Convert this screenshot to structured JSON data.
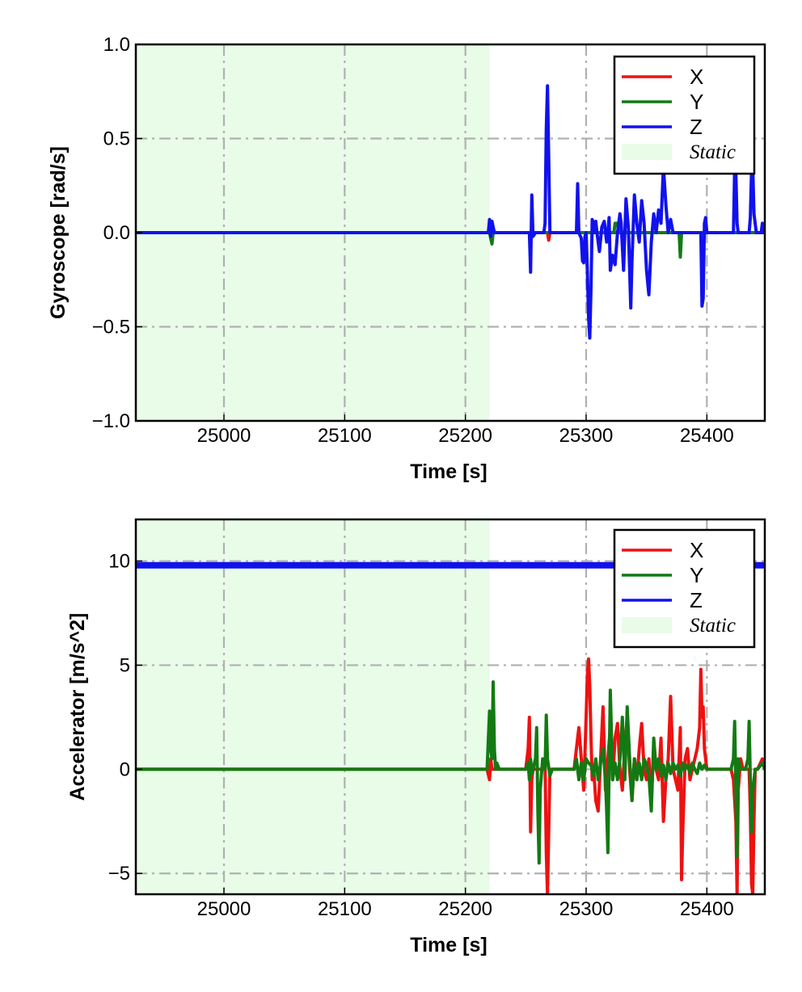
{
  "chart_data": [
    {
      "type": "line",
      "xlabel": "Time [s]",
      "ylabel": "Gyroscope [rad/s]",
      "xlim": [
        24927,
        25448
      ],
      "ylim": [
        -1.0,
        1.0
      ],
      "xticks": [
        25000,
        25100,
        25200,
        25300,
        25400
      ],
      "xtick_labels": [
        "25000",
        "25100",
        "25200",
        "25300",
        "25400"
      ],
      "yticks": [
        -1.0,
        -0.5,
        0.0,
        0.5,
        1.0
      ],
      "ytick_labels": [
        "−1.0",
        "−0.5",
        "0.0",
        "0.5",
        "1.0"
      ],
      "grid": true,
      "legend": "top-right",
      "static_region": {
        "label": "Static",
        "x": [
          24927,
          25220
        ],
        "color": "#e8fce8"
      },
      "series": [
        {
          "name": "X",
          "color": "#ee1111",
          "x": [
            24927,
            25220,
            25221,
            25222,
            25223,
            25253,
            25254,
            25255,
            25256,
            25268,
            25269,
            25270,
            25300,
            25448
          ],
          "y": [
            0.0,
            0.0,
            0.04,
            -0.03,
            0.0,
            0.0,
            -0.02,
            0.02,
            0.0,
            0.0,
            -0.04,
            0.0,
            0.0,
            0.0
          ]
        },
        {
          "name": "Y",
          "color": "#137a13",
          "x": [
            24927,
            25220,
            25222,
            25223,
            25225,
            25323,
            25324,
            25326,
            25327,
            25377,
            25378,
            25379,
            25448
          ],
          "y": [
            0.0,
            0.0,
            -0.06,
            0.0,
            0.0,
            0.0,
            0.05,
            0.05,
            0.0,
            0.0,
            -0.13,
            0.0,
            0.0
          ]
        },
        {
          "name": "Z",
          "color": "#1111ee",
          "x": [
            24927,
            25219,
            25220,
            25221,
            25222,
            25224,
            25253,
            25254,
            25255,
            25256,
            25258,
            25265,
            25266,
            25267,
            25268,
            25269,
            25270,
            25272,
            25292,
            25293,
            25294,
            25296,
            25297,
            25298,
            25299,
            25300,
            25301,
            25302,
            25303,
            25304,
            25305,
            25306,
            25307,
            25308,
            25309,
            25311,
            25313,
            25315,
            25317,
            25318,
            25319,
            25320,
            25322,
            25324,
            25326,
            25328,
            25329,
            25331,
            25333,
            25335,
            25337,
            25338,
            25340,
            25342,
            25344,
            25346,
            25348,
            25350,
            25352,
            25354,
            25356,
            25358,
            25360,
            25362,
            25364,
            25366,
            25368,
            25370,
            25372,
            25374,
            25376,
            25378,
            25380,
            25382,
            25384,
            25386,
            25388,
            25395,
            25396,
            25397,
            25398,
            25399,
            25400,
            25402,
            25410,
            25422,
            25423,
            25424,
            25425,
            25426,
            25428,
            25435,
            25436,
            25437,
            25438,
            25439,
            25441,
            25445,
            25446,
            25447,
            25448
          ],
          "y": [
            0.0,
            0.0,
            0.07,
            -0.02,
            0.06,
            0.0,
            0.0,
            -0.21,
            0.2,
            -0.02,
            0.0,
            0.0,
            0.05,
            0.55,
            0.78,
            0.4,
            0.0,
            0.0,
            0.0,
            0.26,
            0.0,
            -0.03,
            -0.15,
            -0.16,
            -0.02,
            0.0,
            -0.2,
            -0.45,
            -0.56,
            -0.3,
            0.07,
            0.05,
            0.0,
            0.06,
            0.0,
            -0.1,
            0.03,
            0.06,
            -0.05,
            0.0,
            0.08,
            -0.2,
            -0.12,
            -0.17,
            0.0,
            0.1,
            0.05,
            -0.2,
            0.18,
            0.02,
            -0.4,
            -0.15,
            0.2,
            0.05,
            -0.05,
            0.17,
            0.05,
            -0.2,
            -0.33,
            -0.05,
            0.1,
            0.0,
            0.12,
            0.05,
            0.35,
            0.15,
            0.0,
            0.07,
            0.0,
            0.0,
            0.0,
            0.0,
            0.0,
            0.0,
            0.0,
            0.0,
            0.0,
            0.0,
            -0.39,
            -0.35,
            0.05,
            0.08,
            0.0,
            0.0,
            0.0,
            0.0,
            0.34,
            0.32,
            0.05,
            0.0,
            0.0,
            0.0,
            0.08,
            0.33,
            0.35,
            0.1,
            0.0,
            0.0,
            0.05,
            0.0,
            0.0
          ]
        }
      ]
    },
    {
      "type": "line",
      "xlabel": "Time [s]",
      "ylabel": "Accelerator [m/s^2]",
      "xlim": [
        24927,
        25448
      ],
      "ylim": [
        -6,
        12
      ],
      "xticks": [
        25000,
        25100,
        25200,
        25300,
        25400
      ],
      "xtick_labels": [
        "25000",
        "25100",
        "25200",
        "25300",
        "25400"
      ],
      "yticks": [
        -5,
        0,
        5,
        10
      ],
      "ytick_labels": [
        "−5",
        "0",
        "5",
        "10"
      ],
      "grid": true,
      "legend": "top-right",
      "static_region": {
        "label": "Static",
        "x": [
          24927,
          25220
        ],
        "color": "#e8fce8"
      },
      "series": [
        {
          "name": "X",
          "color": "#ee1111",
          "x": [
            24927,
            25218,
            25220,
            25221,
            25222,
            25224,
            25250,
            25252,
            25253,
            25254,
            25255,
            25256,
            25258,
            25265,
            25266,
            25267,
            25268,
            25269,
            25270,
            25272,
            25290,
            25292,
            25294,
            25296,
            25298,
            25300,
            25301,
            25302,
            25303,
            25304,
            25305,
            25306,
            25308,
            25310,
            25312,
            25314,
            25316,
            25318,
            25320,
            25322,
            25324,
            25326,
            25328,
            25330,
            25332,
            25334,
            25336,
            25338,
            25340,
            25342,
            25344,
            25346,
            25348,
            25350,
            25352,
            25354,
            25356,
            25358,
            25360,
            25362,
            25364,
            25366,
            25368,
            25370,
            25372,
            25374,
            25376,
            25378,
            25379,
            25380,
            25382,
            25384,
            25386,
            25388,
            25390,
            25392,
            25394,
            25395,
            25396,
            25397,
            25398,
            25400,
            25402,
            25420,
            25422,
            25424,
            25425,
            25426,
            25428,
            25430,
            25435,
            25436,
            25437,
            25438,
            25439,
            25440,
            25442,
            25446,
            25448
          ],
          "y": [
            0.0,
            0.0,
            -0.5,
            0.5,
            0.0,
            0.0,
            0.0,
            1.0,
            2.5,
            -3.0,
            -0.5,
            0.0,
            0.0,
            0.0,
            0.3,
            -4.0,
            -6.0,
            -3.0,
            0.0,
            0.0,
            0.0,
            1.0,
            2.0,
            0.5,
            -1.0,
            2.5,
            4.5,
            5.3,
            4.0,
            1.5,
            -0.5,
            0.2,
            -1.5,
            -2.0,
            0.5,
            3.0,
            -1.0,
            0.5,
            2.0,
            -0.5,
            1.5,
            2.2,
            0.0,
            -1.0,
            1.0,
            2.5,
            0.0,
            -1.5,
            0.5,
            -0.5,
            1.0,
            2.2,
            0.0,
            -0.5,
            0.5,
            -1.5,
            1.0,
            0.0,
            -0.5,
            1.5,
            -2.5,
            -0.5,
            0.5,
            3.5,
            0.0,
            -0.5,
            -1.0,
            2.0,
            -5.3,
            -3.0,
            0.5,
            1.0,
            -0.5,
            0.0,
            0.5,
            1.0,
            2.0,
            4.8,
            2.5,
            3.0,
            1.0,
            0.0,
            0.0,
            0.0,
            -0.5,
            -2.5,
            -6.0,
            -1.0,
            0.5,
            0.0,
            0.0,
            -2.0,
            -5.5,
            -6.0,
            -2.5,
            0.0,
            0.0,
            0.5,
            0.0
          ]
        },
        {
          "name": "Y",
          "color": "#137a13",
          "x": [
            24927,
            25218,
            25220,
            25221,
            25222,
            25223,
            25224,
            25225,
            25226,
            25228,
            25250,
            25252,
            25253,
            25254,
            25255,
            25256,
            25258,
            25259,
            25260,
            25261,
            25262,
            25264,
            25266,
            25267,
            25268,
            25270,
            25272,
            25290,
            25292,
            25294,
            25296,
            25298,
            25300,
            25302,
            25304,
            25306,
            25308,
            25310,
            25312,
            25314,
            25316,
            25317,
            25318,
            25319,
            25320,
            25322,
            25324,
            25326,
            25328,
            25330,
            25332,
            25334,
            25336,
            25338,
            25340,
            25342,
            25344,
            25346,
            25348,
            25350,
            25352,
            25354,
            25356,
            25358,
            25360,
            25362,
            25364,
            25366,
            25368,
            25370,
            25372,
            25374,
            25376,
            25378,
            25380,
            25382,
            25384,
            25386,
            25388,
            25390,
            25392,
            25394,
            25396,
            25398,
            25400,
            25420,
            25422,
            25423,
            25424,
            25425,
            25426,
            25428,
            25430,
            25432,
            25434,
            25435,
            25436,
            25437,
            25438,
            25440,
            25442,
            25446,
            25448
          ],
          "y": [
            0.0,
            0.0,
            2.8,
            1.0,
            0.5,
            4.2,
            1.0,
            0.0,
            0.3,
            0.0,
            0.0,
            0.3,
            -0.5,
            0.5,
            -0.2,
            0.0,
            0.5,
            2.0,
            -2.0,
            -4.5,
            -1.0,
            0.5,
            0.0,
            2.6,
            0.5,
            -0.3,
            0.0,
            0.0,
            0.5,
            -0.5,
            0.3,
            -0.5,
            0.5,
            0.3,
            0.2,
            -0.3,
            0.5,
            -0.5,
            0.3,
            1.0,
            -0.5,
            -2.0,
            -4.0,
            0.0,
            3.8,
            -0.5,
            0.3,
            -0.5,
            0.5,
            2.5,
            -0.5,
            3.0,
            0.5,
            -1.5,
            0.5,
            -0.5,
            0.3,
            -0.5,
            0.5,
            0.2,
            -0.3,
            -2.0,
            1.5,
            0.0,
            0.5,
            -0.3,
            0.2,
            -0.5,
            0.3,
            -0.2,
            0.3,
            0.0,
            0.2,
            -0.3,
            0.3,
            0.0,
            0.2,
            -0.2,
            0.3,
            0.0,
            -0.2,
            0.3,
            0.0,
            0.2,
            0.0,
            0.0,
            0.5,
            2.3,
            -1.0,
            -4.2,
            0.5,
            0.0,
            0.0,
            0.0,
            0.5,
            2.3,
            -0.5,
            -3.0,
            -1.0,
            0.0,
            0.0,
            0.3,
            0.0
          ]
        },
        {
          "name": "Z",
          "color": "#1111ee",
          "x": [
            24927,
            25448
          ],
          "y": [
            9.8,
            9.8
          ]
        }
      ]
    }
  ]
}
